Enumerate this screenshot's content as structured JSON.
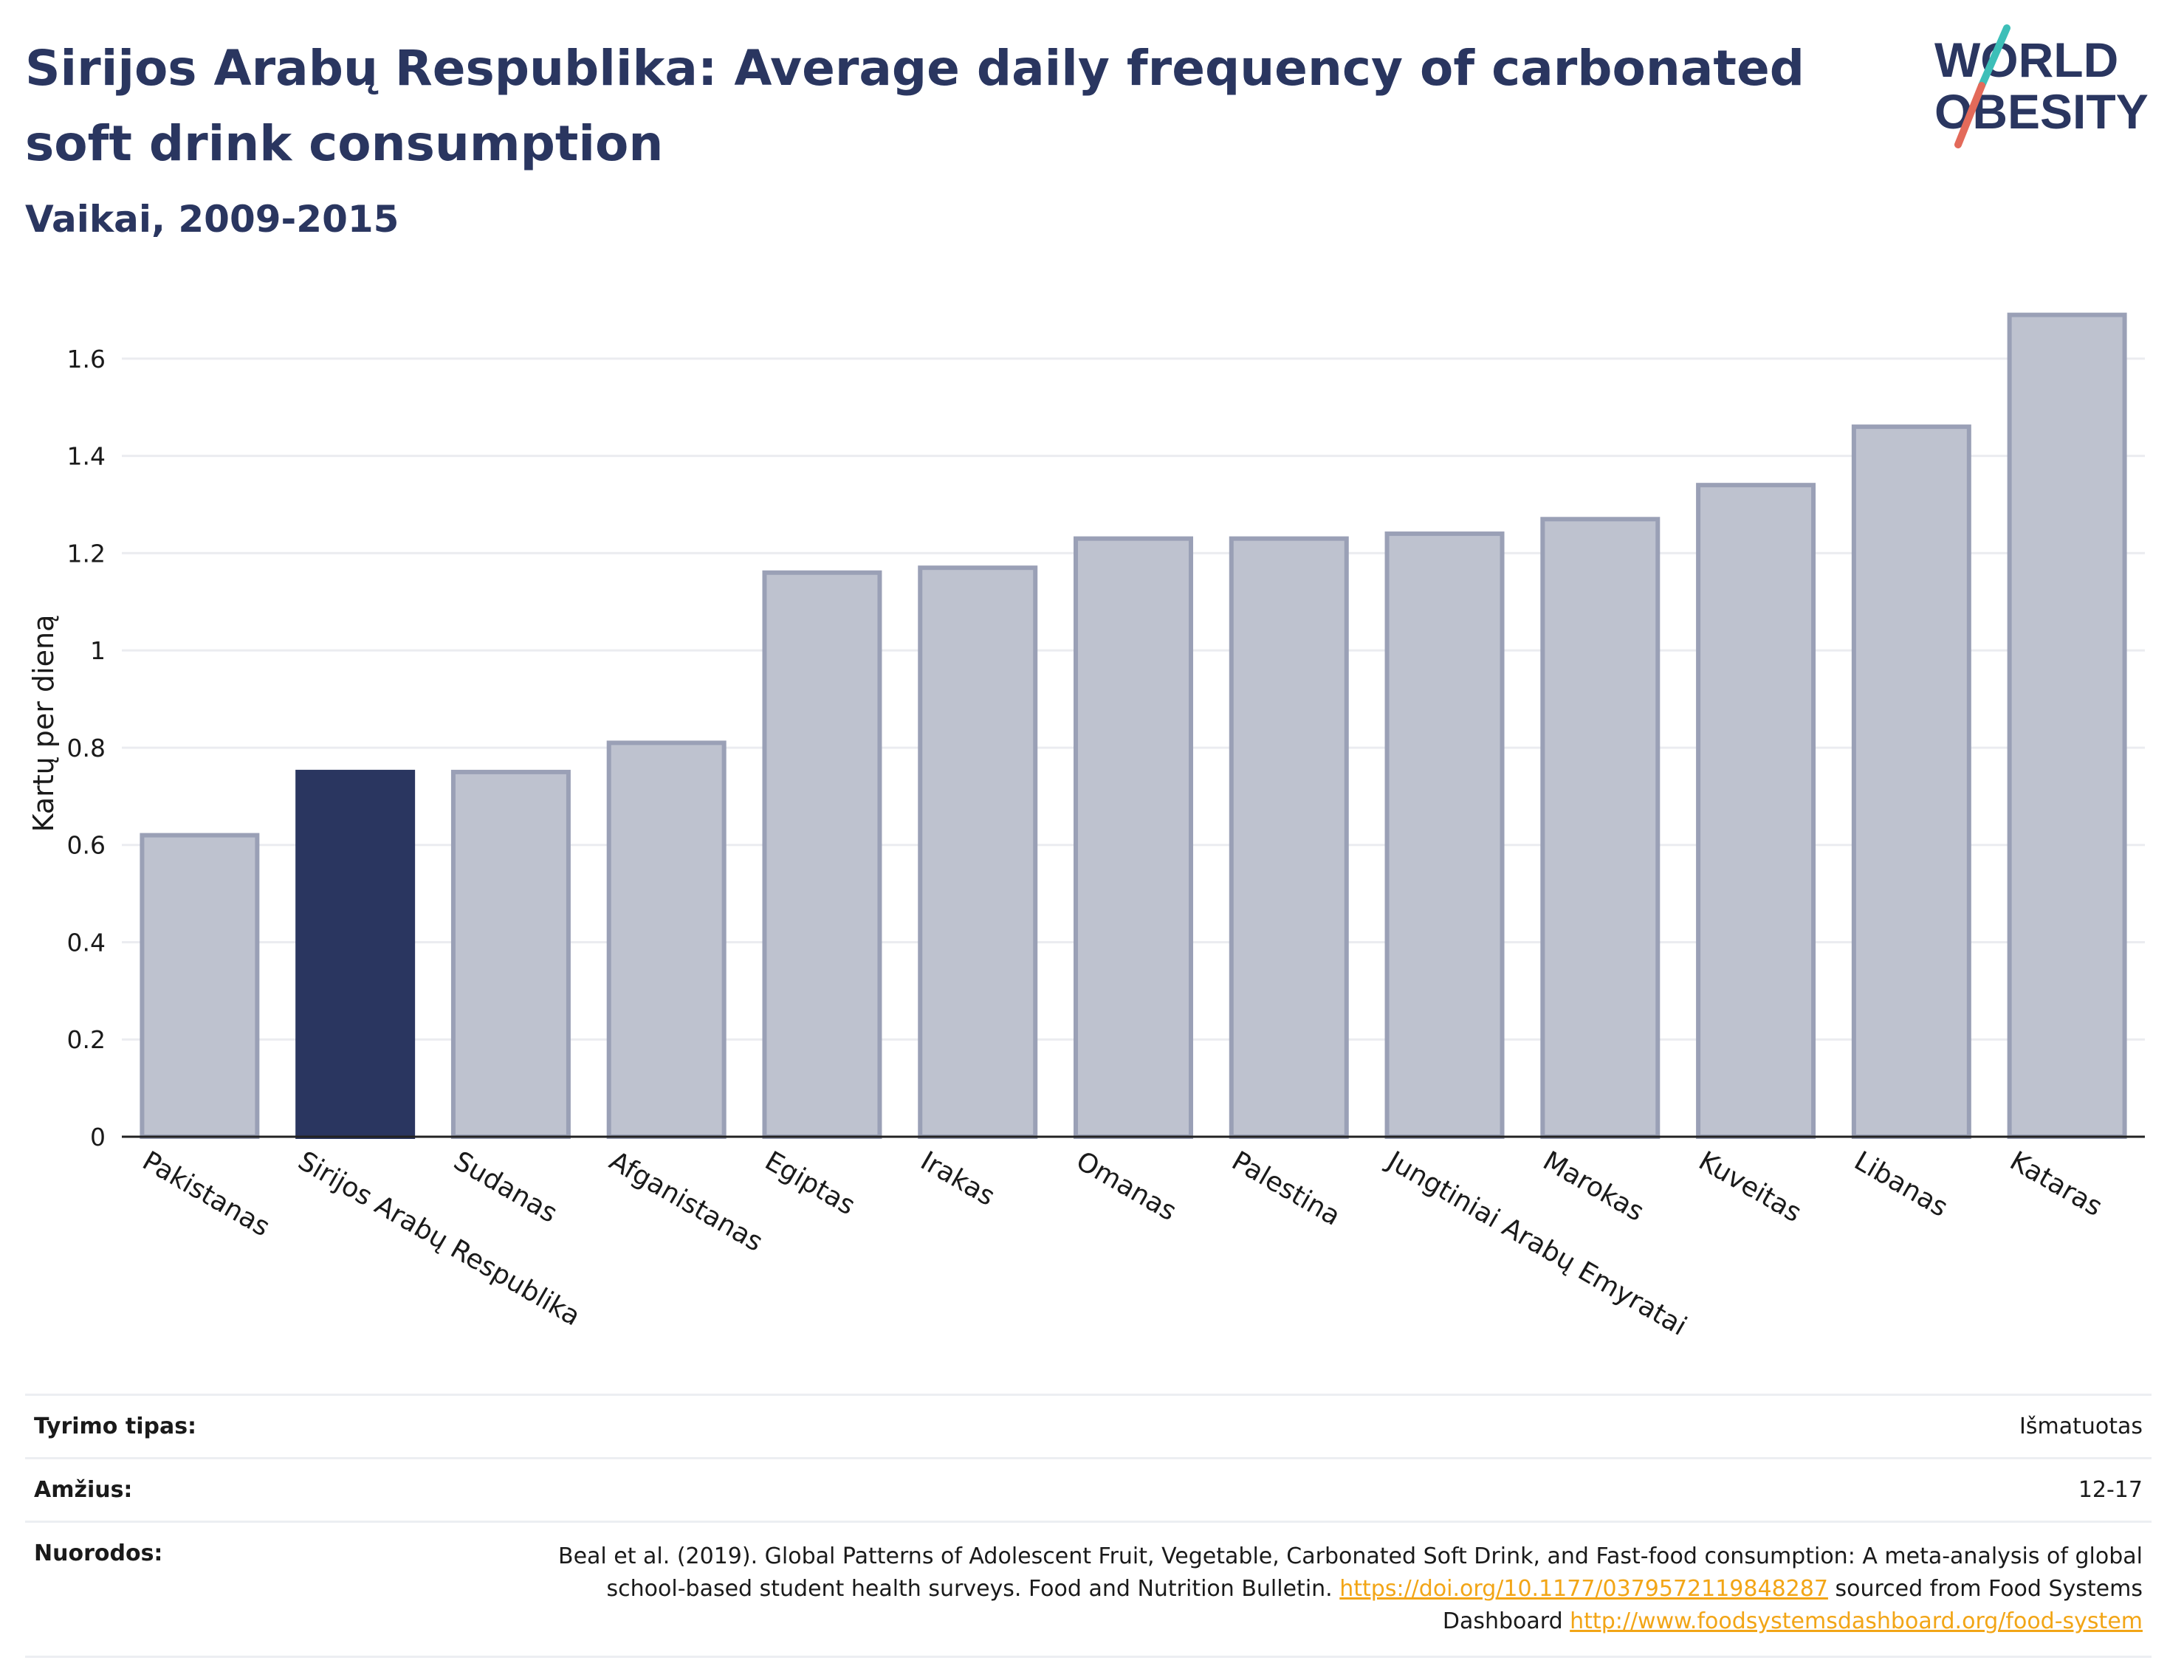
{
  "header": {
    "title": "Sirijos Arabų Respublika: Average daily frequency of carbonated soft drink consumption",
    "subtitle": "Vaikai, 2009-2015"
  },
  "logo": {
    "line1": "WORLD",
    "line2": "OBESITY"
  },
  "colors": {
    "highlight": "#2a3660",
    "bar_fill": "#bec2cf",
    "bar_stroke": "#9aa0b6",
    "accent_teal": "#3dbfb8",
    "accent_red": "#e36a5a",
    "link": "#f2a516"
  },
  "chart_data": {
    "type": "bar",
    "title": "Sirijos Arabų Respublika: Average daily frequency of carbonated soft drink consumption",
    "subtitle": "Vaikai, 2009-2015",
    "xlabel": "",
    "ylabel": "Kartų per dieną",
    "ylim": [
      0,
      1.7
    ],
    "yticks": [
      0,
      0.2,
      0.4,
      0.6,
      0.8,
      1,
      1.2,
      1.4,
      1.6
    ],
    "ytick_labels": [
      "0",
      "0.2",
      "0.4",
      "0.6",
      "0.8",
      "1",
      "1.2",
      "1.4",
      "1.6"
    ],
    "grid": true,
    "highlight": "Sirijos Arabų Respublika",
    "categories": [
      "Pakistanas",
      "Sirijos Arabų Respublika",
      "Sudanas",
      "Afganistanas",
      "Egiptas",
      "Irakas",
      "Omanas",
      "Palestina",
      "Jungtiniai Arabų Emyratai",
      "Marokas",
      "Kuveitas",
      "Libanas",
      "Kataras"
    ],
    "values": [
      0.62,
      0.75,
      0.75,
      0.81,
      1.16,
      1.17,
      1.23,
      1.23,
      1.24,
      1.27,
      1.34,
      1.46,
      1.69
    ]
  },
  "meta": {
    "study_type_label": "Tyrimo tipas:",
    "study_type_value": "Išmatuotas",
    "age_label": "Amžius:",
    "age_value": "12-17",
    "refs_label": "Nuorodos:",
    "refs_text_1": "Beal et al. (2019). Global Patterns of Adolescent Fruit, Vegetable, Carbonated Soft Drink, and Fast-food consumption: A meta-analysis of global school-based student health surveys. Food and Nutrition Bulletin. ",
    "refs_link_1": "https://doi.org/10.1177/0379572119848287",
    "refs_text_2": " sourced from Food Systems Dashboard ",
    "refs_link_2": "http://www.foodsystemsdashboard.org/food-system"
  }
}
